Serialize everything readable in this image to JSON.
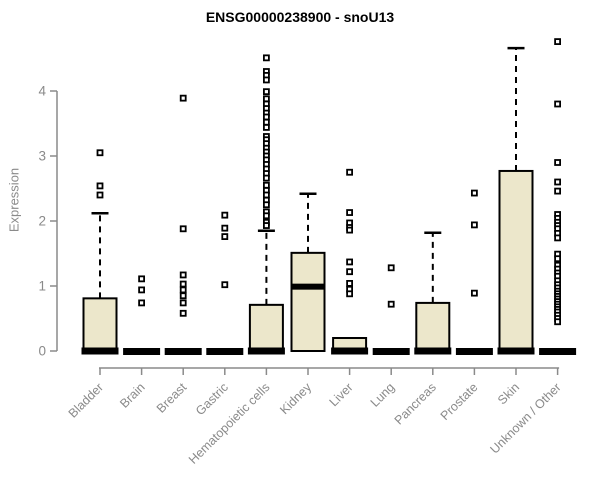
{
  "chart_data": {
    "type": "boxplot",
    "title": "ENSG00000238900 - snoU13",
    "xlabel": "",
    "ylabel": "Expression",
    "ylim": [
      0,
      4
    ],
    "yticks": [
      0,
      1,
      2,
      3,
      4
    ],
    "grid": false,
    "legend": "none",
    "x_tick_rotation_deg": -45,
    "categories": [
      "Bladder",
      "Brain",
      "Breast",
      "Gastric",
      "Hematopoietic cells",
      "Kidney",
      "Liver",
      "Lung",
      "Pancreas",
      "Prostate",
      "Skin",
      "Unknown / Other"
    ],
    "series": [
      {
        "name": "Bladder",
        "q1": 0,
        "median": 0,
        "q3": 0.81,
        "whisker_low": 0,
        "whisker_high": 2.12,
        "outliers": [
          3.05,
          2.54,
          2.4
        ]
      },
      {
        "name": "Brain",
        "q1": 0,
        "median": 0,
        "q3": 0,
        "whisker_low": 0,
        "whisker_high": 0,
        "outliers": [
          1.11,
          0.94,
          0.74
        ]
      },
      {
        "name": "Breast",
        "q1": 0,
        "median": 0,
        "q3": 0,
        "whisker_low": 0,
        "whisker_high": 0,
        "outliers": [
          3.89,
          1.88,
          1.17,
          1.03,
          0.94,
          0.85,
          0.74,
          0.58
        ]
      },
      {
        "name": "Gastric",
        "q1": 0,
        "median": 0,
        "q3": 0,
        "whisker_low": 0,
        "whisker_high": 0,
        "outliers": [
          2.09,
          1.89,
          1.76,
          1.02
        ]
      },
      {
        "name": "Hematopoietic cells",
        "q1": 0,
        "median": 0,
        "q3": 0.71,
        "whisker_low": 0,
        "whisker_high": 1.85,
        "outliers": [
          4.51,
          4.3,
          4.24,
          4.17,
          3.99,
          3.88,
          3.8,
          3.73,
          3.66,
          3.6,
          3.52,
          3.44,
          3.3,
          3.25,
          3.19,
          3.12,
          3.06,
          3.0,
          2.94,
          2.87,
          2.8,
          2.73,
          2.66,
          2.55,
          2.47,
          2.4,
          2.32,
          2.25,
          2.14,
          2.08,
          1.98,
          1.93
        ]
      },
      {
        "name": "Kidney",
        "q1": 0,
        "median": 0.99,
        "q3": 1.51,
        "whisker_low": 0,
        "whisker_high": 2.42,
        "outliers": []
      },
      {
        "name": "Liver",
        "q1": 0,
        "median": 0,
        "q3": 0.2,
        "whisker_low": 0,
        "whisker_high": 0.2,
        "outliers": [
          2.75,
          2.13,
          1.97,
          1.9,
          1.86,
          1.37,
          1.22,
          1.04,
          0.95,
          0.88
        ]
      },
      {
        "name": "Lung",
        "q1": 0,
        "median": 0,
        "q3": 0,
        "whisker_low": 0,
        "whisker_high": 0,
        "outliers": [
          1.28,
          0.72
        ]
      },
      {
        "name": "Pancreas",
        "q1": 0,
        "median": 0,
        "q3": 0.74,
        "whisker_low": 0,
        "whisker_high": 1.82,
        "outliers": []
      },
      {
        "name": "Prostate",
        "q1": 0,
        "median": 0,
        "q3": 0,
        "whisker_low": 0,
        "whisker_high": 0,
        "outliers": [
          2.43,
          1.94,
          0.89
        ]
      },
      {
        "name": "Skin",
        "q1": 0,
        "median": 0,
        "q3": 2.77,
        "whisker_low": 0,
        "whisker_high": 4.66,
        "outliers": []
      },
      {
        "name": "Unknown / Other",
        "q1": 0,
        "median": 0,
        "q3": 0,
        "whisker_low": 0,
        "whisker_high": 0,
        "outliers": [
          4.76,
          3.8,
          2.9,
          2.6,
          2.46,
          2.1,
          2.04,
          1.98,
          1.93,
          1.88,
          1.81,
          1.74,
          1.49,
          1.42,
          1.32,
          1.26,
          1.2,
          1.15,
          1.08,
          1.02,
          0.97,
          0.92,
          0.88,
          0.84,
          0.8,
          0.76,
          0.72,
          0.68,
          0.64,
          0.6,
          0.55,
          0.5,
          0.45
        ]
      }
    ],
    "colors": {
      "box_fill": "#ece7cb",
      "box_border": "#000000",
      "median": "#000000",
      "outlier": "#000000",
      "axis": "#8a8a8a",
      "tick_label": "#8a8a8a",
      "title": "#000000",
      "background": "#ffffff"
    }
  }
}
